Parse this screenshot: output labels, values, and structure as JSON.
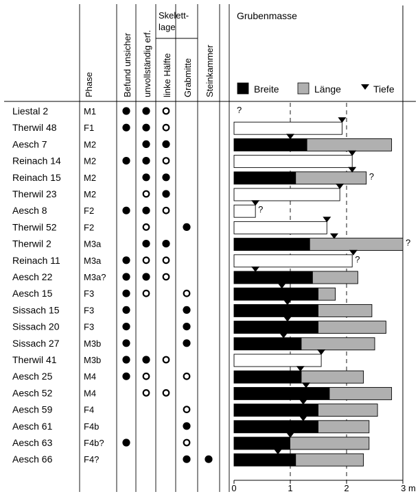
{
  "chart_data": {
    "type": "bar",
    "title": "Grubenmasse",
    "legend": [
      {
        "key": "breite",
        "label": "Breite",
        "color": "#000000",
        "shape": "square"
      },
      {
        "key": "laenge",
        "label": "Länge",
        "color": "#b0b0b0",
        "shape": "square"
      },
      {
        "key": "tiefe",
        "label": "Tiefe",
        "color": "#000000",
        "shape": "triangle"
      }
    ],
    "columns": {
      "phase": "Phase",
      "befund": "Befund unsicher",
      "unvollstaendig": "unvollständig erf.",
      "skelettlage": "Skelett-\nlage",
      "linke_haelfte": "linke Hälfte",
      "grabmitte": "Grabmitte",
      "steinkammer": "Steinkammer"
    },
    "x_axis": {
      "ticks": [
        "0",
        "1",
        "2",
        "3 m"
      ],
      "min": 0,
      "max": 3,
      "dashed_gridlines": [
        1,
        2
      ]
    },
    "rows": [
      {
        "name": "Liestal 2",
        "phase": "M1",
        "befund": true,
        "unvoll": "filled",
        "linke": "open",
        "grabmitte": null,
        "stein": false,
        "breite": null,
        "laenge": null,
        "tiefe": null,
        "uncertain": true,
        "bar_style": "none"
      },
      {
        "name": "Therwil 48",
        "phase": "F1",
        "befund": true,
        "unvoll": "filled",
        "linke": "open",
        "grabmitte": null,
        "stein": false,
        "breite": null,
        "laenge": 1.92,
        "tiefe": 1.92,
        "uncertain": false,
        "bar_style": "white"
      },
      {
        "name": "Aesch 7",
        "phase": "M2",
        "befund": false,
        "unvoll": "filled",
        "linke": "filled",
        "grabmitte": null,
        "stein": false,
        "breite": 1.3,
        "laenge": 2.8,
        "tiefe": 1.0,
        "uncertain": false,
        "bar_style": "normal"
      },
      {
        "name": "Reinach 14",
        "phase": "M2",
        "befund": true,
        "unvoll": "filled",
        "linke": "open",
        "grabmitte": null,
        "stein": false,
        "breite": null,
        "laenge": 2.1,
        "tiefe": 2.1,
        "uncertain": false,
        "bar_style": "white"
      },
      {
        "name": "Reinach 15",
        "phase": "M2",
        "befund": false,
        "unvoll": "filled",
        "linke": "filled",
        "grabmitte": null,
        "stein": false,
        "breite": 1.1,
        "laenge": 2.35,
        "tiefe": 2.1,
        "uncertain": true,
        "bar_style": "normal"
      },
      {
        "name": "Therwil 23",
        "phase": "M2",
        "befund": false,
        "unvoll": "open",
        "linke": "filled",
        "grabmitte": null,
        "stein": false,
        "breite": null,
        "laenge": 1.88,
        "tiefe": 1.88,
        "uncertain": false,
        "bar_style": "white"
      },
      {
        "name": "Aesch 8",
        "phase": "F2",
        "befund": true,
        "unvoll": "filled",
        "linke": "open",
        "grabmitte": null,
        "stein": false,
        "breite": null,
        "laenge": 0.38,
        "tiefe": 0.38,
        "uncertain": true,
        "bar_style": "white"
      },
      {
        "name": "Therwil 52",
        "phase": "F2",
        "befund": false,
        "unvoll": "open",
        "linke": null,
        "grabmitte": "filled",
        "stein": false,
        "breite": null,
        "laenge": 1.65,
        "tiefe": 1.65,
        "uncertain": false,
        "bar_style": "white"
      },
      {
        "name": "Therwil 2",
        "phase": "M3a",
        "befund": false,
        "unvoll": "filled",
        "linke": "filled",
        "grabmitte": null,
        "stein": false,
        "breite": 1.35,
        "laenge": 3.0,
        "tiefe": 1.78,
        "uncertain": true,
        "bar_style": "normal"
      },
      {
        "name": "Reinach 11",
        "phase": "M3a",
        "befund": true,
        "unvoll": "open",
        "linke": "open",
        "grabmitte": null,
        "stein": false,
        "breite": null,
        "laenge": 2.1,
        "tiefe": 2.12,
        "uncertain": true,
        "bar_style": "white"
      },
      {
        "name": "Aesch 22",
        "phase": "M3a?",
        "befund": true,
        "unvoll": "filled",
        "linke": "open",
        "grabmitte": null,
        "stein": false,
        "breite": 1.4,
        "laenge": 2.2,
        "tiefe": 0.38,
        "uncertain": false,
        "bar_style": "normal"
      },
      {
        "name": "Aesch 15",
        "phase": "F3",
        "befund": true,
        "unvoll": "open",
        "linke": null,
        "grabmitte": "open",
        "stein": false,
        "breite": 1.5,
        "laenge": 1.8,
        "tiefe": 0.85,
        "uncertain": false,
        "bar_style": "normal"
      },
      {
        "name": "Sissach 15",
        "phase": "F3",
        "befund": true,
        "unvoll": null,
        "linke": null,
        "grabmitte": "filled",
        "stein": false,
        "breite": 1.5,
        "laenge": 2.45,
        "tiefe": 0.95,
        "uncertain": false,
        "bar_style": "normal"
      },
      {
        "name": "Sissach 20",
        "phase": "F3",
        "befund": true,
        "unvoll": null,
        "linke": null,
        "grabmitte": "filled",
        "stein": false,
        "breite": 1.5,
        "laenge": 2.7,
        "tiefe": 0.95,
        "uncertain": false,
        "bar_style": "normal"
      },
      {
        "name": "Sissach 27",
        "phase": "M3b",
        "befund": true,
        "unvoll": null,
        "linke": null,
        "grabmitte": "filled",
        "stein": false,
        "breite": 1.2,
        "laenge": 2.5,
        "tiefe": 0.88,
        "uncertain": false,
        "bar_style": "normal"
      },
      {
        "name": "Therwil 41",
        "phase": "M3b",
        "befund": true,
        "unvoll": "filled",
        "linke": "open",
        "grabmitte": null,
        "stein": false,
        "breite": null,
        "laenge": 1.55,
        "tiefe": 1.55,
        "uncertain": false,
        "bar_style": "white"
      },
      {
        "name": "Aesch 25",
        "phase": "M4",
        "befund": true,
        "unvoll": "open",
        "linke": null,
        "grabmitte": "open",
        "stein": false,
        "breite": 1.2,
        "laenge": 2.3,
        "tiefe": 1.18,
        "uncertain": false,
        "bar_style": "normal"
      },
      {
        "name": "Aesch 52",
        "phase": "M4",
        "befund": false,
        "unvoll": "open",
        "linke": "open",
        "grabmitte": null,
        "stein": false,
        "breite": 1.7,
        "laenge": 2.8,
        "tiefe": 1.28,
        "uncertain": false,
        "bar_style": "normal"
      },
      {
        "name": "Aesch 59",
        "phase": "F4",
        "befund": false,
        "unvoll": null,
        "linke": null,
        "grabmitte": "open",
        "stein": false,
        "breite": 1.5,
        "laenge": 2.55,
        "tiefe": 1.23,
        "uncertain": false,
        "bar_style": "normal"
      },
      {
        "name": "Aesch 61",
        "phase": "F4b",
        "befund": false,
        "unvoll": null,
        "linke": null,
        "grabmitte": "filled",
        "stein": false,
        "breite": 1.5,
        "laenge": 2.4,
        "tiefe": 1.23,
        "uncertain": false,
        "bar_style": "normal"
      },
      {
        "name": "Aesch 63",
        "phase": "F4b?",
        "befund": true,
        "unvoll": null,
        "linke": null,
        "grabmitte": "open",
        "stein": false,
        "breite": 1.0,
        "laenge": 2.4,
        "tiefe": 1.0,
        "uncertain": false,
        "bar_style": "normal"
      },
      {
        "name": "Aesch 66",
        "phase": "F4?",
        "befund": false,
        "unvoll": null,
        "linke": null,
        "grabmitte": "filled",
        "stein": true,
        "breite": 1.1,
        "laenge": 2.3,
        "tiefe": 0.78,
        "uncertain": false,
        "bar_style": "normal"
      }
    ],
    "uncertain_mark": "?"
  }
}
